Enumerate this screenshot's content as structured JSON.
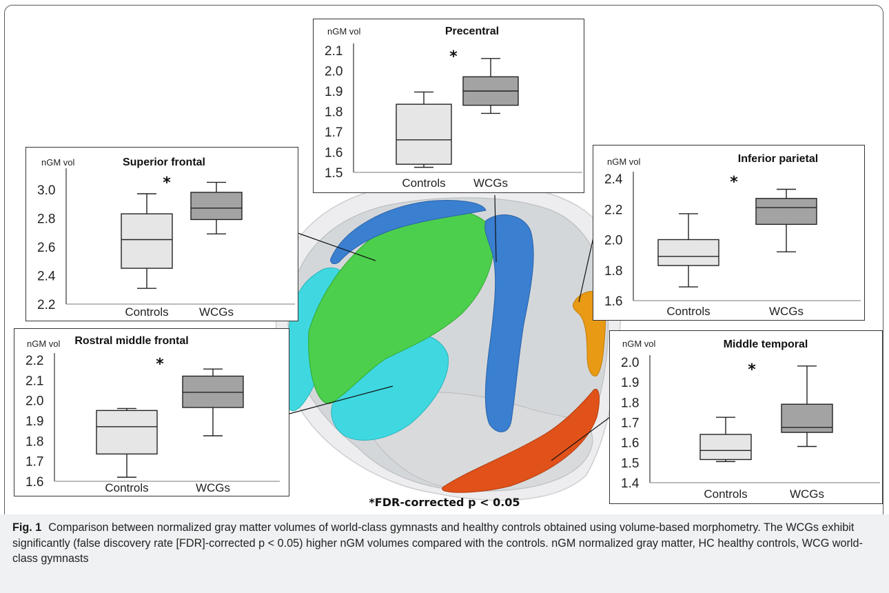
{
  "figure_note": "*FDR-corrected p < 0.05",
  "caption": {
    "label": "Fig. 1",
    "text": "Comparison between normalized gray matter volumes of world-class gymnasts and healthy controls obtained using volume-based morphometry. The WCGs exhibit significantly (false discovery rate [FDR]-corrected p < 0.05) higher nGM volumes compared with the controls. nGM normalized gray matter, HC healthy controls, WCG world-class gymnasts"
  },
  "colors": {
    "superior_frontal": "#4ccf4c",
    "rostral_middle_frontal": "#3fd8e0",
    "precentral": "#3a7fd0",
    "inferior_parietal": "#e89a14",
    "middle_temporal": "#e0521a",
    "cortex": "#d2d5d8",
    "controls_box": "#e6e6e6",
    "wcgs_box": "#a3a3a3"
  },
  "chart_data": [
    {
      "type": "box",
      "title": "Superior frontal",
      "ylabel": "nGM vol",
      "significance": "*",
      "categories": [
        "Controls",
        "WCGs"
      ],
      "yticks": [
        "3.0",
        "2.8",
        "2.6",
        "2.4",
        "2.2"
      ],
      "ylim": [
        2.2,
        3.1
      ],
      "series": [
        {
          "name": "Controls",
          "min": 2.31,
          "q1": 2.45,
          "median": 2.65,
          "q3": 2.83,
          "max": 2.97
        },
        {
          "name": "WCGs",
          "min": 2.69,
          "q1": 2.79,
          "median": 2.87,
          "q3": 2.98,
          "max": 3.05
        }
      ]
    },
    {
      "type": "box",
      "title": "Precentral",
      "ylabel": "nGM vol",
      "significance": "*",
      "categories": [
        "Controls",
        "WCGs"
      ],
      "yticks": [
        "2.1",
        "2.0",
        "1.9",
        "1.8",
        "1.7",
        "1.6",
        "1.5"
      ],
      "ylim": [
        1.5,
        2.1
      ],
      "series": [
        {
          "name": "Controls",
          "min": 1.525,
          "q1": 1.54,
          "median": 1.66,
          "q3": 1.835,
          "max": 1.895
        },
        {
          "name": "WCGs",
          "min": 1.79,
          "q1": 1.83,
          "median": 1.9,
          "q3": 1.97,
          "max": 2.06
        }
      ]
    },
    {
      "type": "box",
      "title": "Inferior parietal",
      "ylabel": "nGM vol",
      "significance": "*",
      "categories": [
        "Controls",
        "WCGs"
      ],
      "yticks": [
        "2.4",
        "2.2",
        "2.0",
        "1.8",
        "1.6"
      ],
      "ylim": [
        1.6,
        2.4
      ],
      "series": [
        {
          "name": "Controls",
          "min": 1.69,
          "q1": 1.83,
          "median": 1.89,
          "q3": 2.0,
          "max": 2.17
        },
        {
          "name": "WCGs",
          "min": 1.92,
          "q1": 2.1,
          "median": 2.21,
          "q3": 2.27,
          "max": 2.33
        }
      ]
    },
    {
      "type": "box",
      "title": "Rostral middle frontal",
      "ylabel": "nGM vol",
      "significance": "*",
      "categories": [
        "Controls",
        "WCGs"
      ],
      "yticks": [
        "2.2",
        "2.1",
        "2.0",
        "1.9",
        "1.8",
        "1.7",
        "1.6"
      ],
      "ylim": [
        1.6,
        2.2
      ],
      "series": [
        {
          "name": "Controls",
          "min": 1.62,
          "q1": 1.735,
          "median": 1.87,
          "q3": 1.95,
          "max": 1.96
        },
        {
          "name": "WCGs",
          "min": 1.825,
          "q1": 1.965,
          "median": 2.04,
          "q3": 2.12,
          "max": 2.155
        }
      ]
    },
    {
      "type": "box",
      "title": "Middle temporal",
      "ylabel": "nGM vol",
      "significance": "*",
      "categories": [
        "Controls",
        "WCGs"
      ],
      "yticks": [
        "2.0",
        "1.9",
        "1.8",
        "1.7",
        "1.6",
        "1.5",
        "1.4"
      ],
      "ylim": [
        1.4,
        2.0
      ],
      "series": [
        {
          "name": "Controls",
          "min": 1.505,
          "q1": 1.515,
          "median": 1.56,
          "q3": 1.64,
          "max": 1.725
        },
        {
          "name": "WCGs",
          "min": 1.58,
          "q1": 1.65,
          "median": 1.675,
          "q3": 1.79,
          "max": 1.98
        }
      ]
    }
  ]
}
